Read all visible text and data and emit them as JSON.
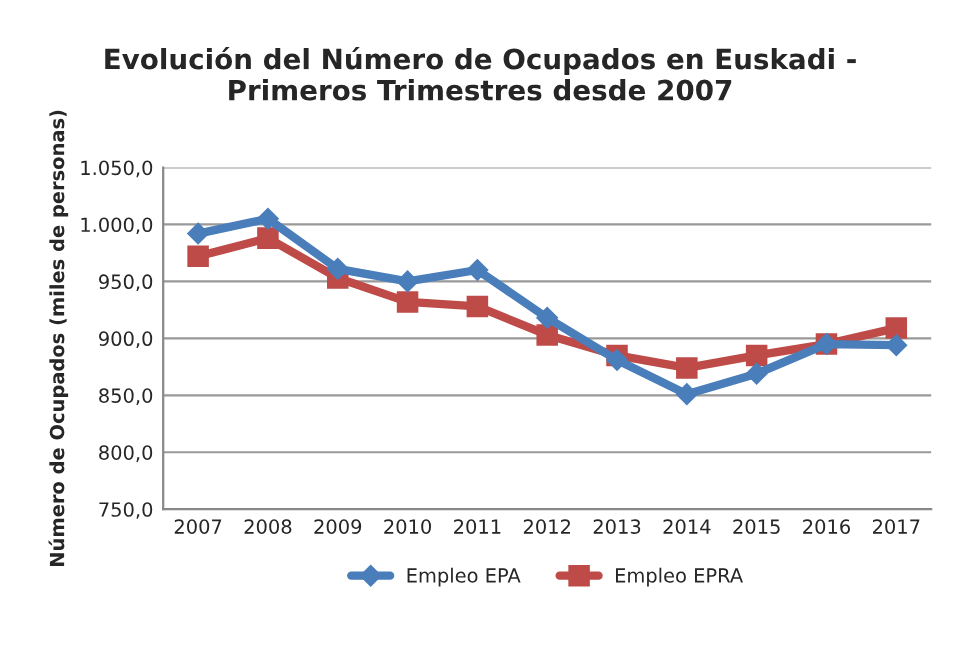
{
  "chart_data": {
    "type": "line",
    "title": "Evolución del Número de Ocupados en Euskadi -\nPrimeros Trimestres desde 2007",
    "ylabel": "Número de Ocupados (miles de personas)",
    "categories": [
      "2007",
      "2008",
      "2009",
      "2010",
      "2011",
      "2012",
      "2013",
      "2014",
      "2015",
      "2016",
      "2017"
    ],
    "series": [
      {
        "name": "Empleo EPA",
        "color": "#4a7ebb",
        "marker": "diamond",
        "values": [
          992,
          1005,
          961,
          950,
          960,
          918,
          881,
          851,
          869,
          895,
          894
        ]
      },
      {
        "name": "Empleo EPRA",
        "color": "#be4b48",
        "marker": "square",
        "values": [
          972,
          988,
          953,
          932,
          928,
          903,
          885,
          874,
          885,
          895,
          909
        ]
      }
    ],
    "ylim": [
      750,
      1050
    ],
    "yticks": [
      {
        "value": 750,
        "label": "750,0"
      },
      {
        "value": 800,
        "label": "800,0"
      },
      {
        "value": 850,
        "label": "850,0"
      },
      {
        "value": 900,
        "label": "900,0"
      },
      {
        "value": 950,
        "label": "950,0"
      },
      {
        "value": 1000,
        "label": "1.000,0"
      },
      {
        "value": 1050,
        "label": "1.050,0"
      }
    ],
    "grid": "y",
    "legend": "bottom",
    "line_style": "solid"
  }
}
